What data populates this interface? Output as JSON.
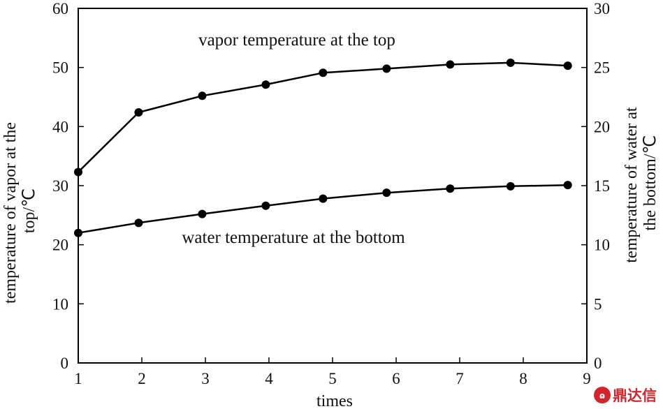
{
  "chart_data": {
    "type": "line",
    "xlabel": "times",
    "ylabel_left": "temperature of vapor at the top/℃",
    "ylabel_right": "temperature of water at the bottom/℃",
    "xlim": [
      1,
      9
    ],
    "ylim_left": [
      0,
      60
    ],
    "ylim_right": [
      0,
      30
    ],
    "xticks": [
      "1",
      "2",
      "3",
      "4",
      "5",
      "6",
      "7",
      "8",
      "9"
    ],
    "yticks_left": [
      "0",
      "10",
      "20",
      "30",
      "40",
      "50",
      "60"
    ],
    "yticks_right": [
      "0",
      "5",
      "10",
      "15",
      "20",
      "25",
      "30"
    ],
    "grid": false,
    "series": [
      {
        "axis": "left",
        "x": [
          1,
          1.95,
          2.95,
          3.95,
          4.85,
          5.85,
          6.85,
          7.8,
          8.7
        ],
        "values": [
          32.3,
          42.4,
          45.2,
          47.1,
          49.1,
          49.8,
          50.5,
          50.8,
          50.3
        ]
      },
      {
        "axis": "right",
        "x": [
          1,
          1.95,
          2.95,
          3.95,
          4.85,
          5.85,
          6.85,
          7.8,
          8.7
        ],
        "values": [
          11.0,
          11.85,
          12.6,
          13.3,
          13.9,
          14.4,
          14.75,
          14.95,
          15.05
        ]
      }
    ],
    "annotations": [
      {
        "text": "vapor temperature at the top",
        "series_index": 0
      },
      {
        "text": "water temperature at the bottom",
        "series_index": 1
      }
    ]
  },
  "watermark": {
    "text": "鼎达信",
    "icon": "ddx-logo-icon",
    "color": "#d4242b"
  }
}
